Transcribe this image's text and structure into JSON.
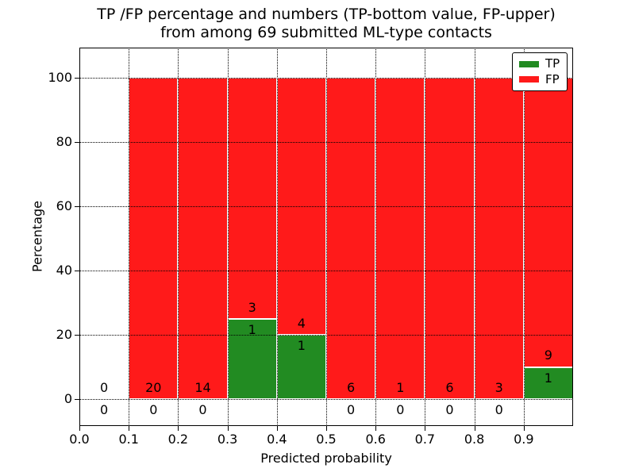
{
  "title": {
    "line1": "TP /FP percentage and numbers (TP-bottom value, FP-upper)",
    "line2": "from among 69 submitted ML-type contacts"
  },
  "axes": {
    "xlabel": "Predicted probability",
    "ylabel": "Percentage"
  },
  "colors": {
    "tp": "#228B22",
    "fp": "#FF1A1A",
    "grid": "#000000",
    "spine": "#000000",
    "background": "#FFFFFF"
  },
  "legend": {
    "position": "upper right",
    "items": [
      {
        "label": "TP",
        "color_key": "tp"
      },
      {
        "label": "FP",
        "color_key": "fp"
      }
    ]
  },
  "chart_data": {
    "type": "bar",
    "stacked": true,
    "title": "TP /FP percentage and numbers (TP-bottom value, FP-upper) from among 69 submitted ML-type contacts",
    "xlabel": "Predicted probability",
    "ylabel": "Percentage",
    "total_contacts": 69,
    "bin_width": 0.1,
    "bin_starts": [
      0.0,
      0.1,
      0.2,
      0.3,
      0.4,
      0.5,
      0.6,
      0.7,
      0.8,
      0.9
    ],
    "series": [
      {
        "name": "TP",
        "counts": [
          0,
          0,
          0,
          1,
          1,
          0,
          0,
          0,
          0,
          1
        ],
        "pct": [
          0,
          0,
          0,
          25,
          20,
          0,
          0,
          0,
          0,
          10
        ]
      },
      {
        "name": "FP",
        "counts": [
          0,
          20,
          14,
          3,
          4,
          6,
          1,
          6,
          3,
          9
        ],
        "pct": [
          0,
          100,
          100,
          75,
          80,
          100,
          100,
          100,
          100,
          90
        ]
      }
    ],
    "x_ticks": [
      "0.0",
      "0.1",
      "0.2",
      "0.3",
      "0.4",
      "0.5",
      "0.6",
      "0.7",
      "0.8",
      "0.9"
    ],
    "x_tick_values": [
      0,
      0.1,
      0.2,
      0.3,
      0.4,
      0.5,
      0.6,
      0.7,
      0.8,
      0.9
    ],
    "y_ticks": [
      0,
      20,
      40,
      60,
      80,
      100
    ],
    "xlim": [
      0,
      1.0
    ],
    "ylim": [
      -8.4,
      109.5
    ],
    "grid": "dotted",
    "label_offset_pct": 3.5,
    "legend_position": "upper right"
  }
}
